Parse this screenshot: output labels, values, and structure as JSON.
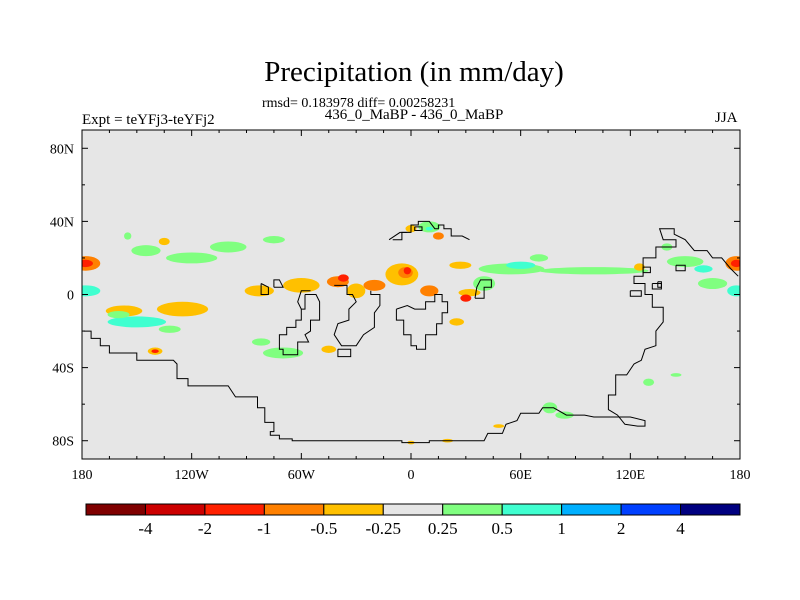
{
  "chart_data": {
    "type": "contour-map",
    "title": "Precipitation (in mm/day)",
    "subtitle": "rmsd= 0.183978 diff= 0.00258231",
    "case_label": "436_0_MaBP - 436_0_MaBP",
    "left_label": "Expt = teYFj3-teYFj2",
    "right_label": "JJA",
    "rmsd": 0.183978,
    "diff": 0.00258231,
    "x_axis": {
      "range": [
        -180,
        180
      ],
      "ticks": [
        -180,
        -120,
        -60,
        0,
        60,
        120,
        180
      ],
      "tick_labels": [
        "180",
        "120W",
        "60W",
        "0",
        "60E",
        "120E",
        "180"
      ]
    },
    "y_axis": {
      "range": [
        -90,
        90
      ],
      "ticks": [
        80,
        40,
        0,
        -40,
        -80
      ],
      "tick_labels": [
        "80N",
        "40N",
        "0",
        "40S",
        "80S"
      ]
    },
    "background_color": "#e6e6e6",
    "colorbar": {
      "levels": [
        "-4",
        "-2",
        "-1",
        "-0.5",
        "-0.25",
        "0.25",
        "0.5",
        "1",
        "2",
        "4"
      ],
      "colors": [
        "#7f0000",
        "#cc0000",
        "#ff2000",
        "#ff8000",
        "#ffc000",
        "#e6e6e6",
        "#80ff80",
        "#40ffd0",
        "#00b0ff",
        "#0040ff",
        "#000080"
      ]
    },
    "anomaly_regions": [
      {
        "lon": -178,
        "lat": 17,
        "rlon": 8,
        "rlat": 4,
        "color": "#ff8000"
      },
      {
        "lon": -178,
        "lat": 17,
        "rlon": 4,
        "rlat": 2,
        "color": "#ff2000"
      },
      {
        "lon": 178,
        "lat": 17,
        "rlon": 6,
        "rlat": 4,
        "color": "#ff8000"
      },
      {
        "lon": 178,
        "lat": 17,
        "rlon": 3,
        "rlat": 2,
        "color": "#ff2000"
      },
      {
        "lon": -178,
        "lat": 2,
        "rlon": 8,
        "rlat": 3,
        "color": "#40ffd0"
      },
      {
        "lon": 178,
        "lat": 2,
        "rlon": 5,
        "rlat": 3,
        "color": "#40ffd0"
      },
      {
        "lon": -145,
        "lat": 24,
        "rlon": 8,
        "rlat": 3,
        "color": "#80ff80"
      },
      {
        "lon": -120,
        "lat": 20,
        "rlon": 14,
        "rlat": 3,
        "color": "#80ff80"
      },
      {
        "lon": -100,
        "lat": 26,
        "rlon": 10,
        "rlat": 3,
        "color": "#80ff80"
      },
      {
        "lon": -75,
        "lat": 30,
        "rlon": 6,
        "rlat": 2,
        "color": "#80ff80"
      },
      {
        "lon": -155,
        "lat": 32,
        "rlon": 2,
        "rlat": 2,
        "color": "#80ff80"
      },
      {
        "lon": -135,
        "lat": 29,
        "rlon": 3,
        "rlat": 2,
        "color": "#ffc000"
      },
      {
        "lon": -157,
        "lat": -9,
        "rlon": 10,
        "rlat": 3,
        "color": "#ffc000"
      },
      {
        "lon": -125,
        "lat": -8,
        "rlon": 14,
        "rlat": 4,
        "color": "#ffc000"
      },
      {
        "lon": -150,
        "lat": -15,
        "rlon": 16,
        "rlat": 3,
        "color": "#40ffd0"
      },
      {
        "lon": -160,
        "lat": -11,
        "rlon": 6,
        "rlat": 2,
        "color": "#80ff80"
      },
      {
        "lon": -132,
        "lat": -19,
        "rlon": 6,
        "rlat": 2,
        "color": "#80ff80"
      },
      {
        "lon": -140,
        "lat": -31,
        "rlon": 4,
        "rlat": 2,
        "color": "#ffc000"
      },
      {
        "lon": -140,
        "lat": -31,
        "rlon": 2,
        "rlat": 1,
        "color": "#ff2000"
      },
      {
        "lon": -70,
        "lat": -32,
        "rlon": 11,
        "rlat": 3,
        "color": "#80ff80"
      },
      {
        "lon": -45,
        "lat": -30,
        "rlon": 4,
        "rlat": 2,
        "color": "#ffc000"
      },
      {
        "lon": -82,
        "lat": -26,
        "rlon": 5,
        "rlat": 2,
        "color": "#80ff80"
      },
      {
        "lon": -83,
        "lat": 2,
        "rlon": 8,
        "rlat": 3,
        "color": "#ffc000"
      },
      {
        "lon": -60,
        "lat": 5,
        "rlon": 10,
        "rlat": 4,
        "color": "#ffc000"
      },
      {
        "lon": -40,
        "lat": 7,
        "rlon": 6,
        "rlat": 3,
        "color": "#ff8000"
      },
      {
        "lon": -37,
        "lat": 9,
        "rlon": 3,
        "rlat": 2,
        "color": "#ff2000"
      },
      {
        "lon": -30,
        "lat": 2,
        "rlon": 5,
        "rlat": 4,
        "color": "#ffc000"
      },
      {
        "lon": -20,
        "lat": 5,
        "rlon": 6,
        "rlat": 3,
        "color": "#ff8000"
      },
      {
        "lon": -5,
        "lat": 11,
        "rlon": 9,
        "rlat": 6,
        "color": "#ffc000"
      },
      {
        "lon": -3,
        "lat": 12,
        "rlon": 4,
        "rlat": 3,
        "color": "#ff8000"
      },
      {
        "lon": -2,
        "lat": 13,
        "rlon": 2,
        "rlat": 2,
        "color": "#ff2000"
      },
      {
        "lon": 10,
        "lat": 2,
        "rlon": 5,
        "rlat": 3,
        "color": "#ff8000"
      },
      {
        "lon": 27,
        "lat": 16,
        "rlon": 6,
        "rlat": 2,
        "color": "#ffc000"
      },
      {
        "lon": 32,
        "lat": 1,
        "rlon": 6,
        "rlat": 2,
        "color": "#ffc000"
      },
      {
        "lon": 30,
        "lat": -2,
        "rlon": 3,
        "rlat": 2,
        "color": "#ff2000"
      },
      {
        "lon": 25,
        "lat": -15,
        "rlon": 4,
        "rlat": 2,
        "color": "#ffc000"
      },
      {
        "lon": 10,
        "lat": 37,
        "rlon": 6,
        "rlat": 3,
        "color": "#80ff80"
      },
      {
        "lon": 10,
        "lat": 36,
        "rlon": 2,
        "rlat": 1,
        "color": "#40ffd0"
      },
      {
        "lon": 0,
        "lat": 36,
        "rlon": 3,
        "rlat": 2,
        "color": "#ffc000"
      },
      {
        "lon": 15,
        "lat": 32,
        "rlon": 3,
        "rlat": 2,
        "color": "#ff8000"
      },
      {
        "lon": 40,
        "lat": 6,
        "rlon": 6,
        "rlat": 4,
        "color": "#80ff80"
      },
      {
        "lon": 55,
        "lat": 14,
        "rlon": 18,
        "rlat": 3,
        "color": "#80ff80"
      },
      {
        "lon": 60,
        "lat": 16,
        "rlon": 8,
        "rlat": 2,
        "color": "#40ffd0"
      },
      {
        "lon": 70,
        "lat": 20,
        "rlon": 5,
        "rlat": 2,
        "color": "#80ff80"
      },
      {
        "lon": 100,
        "lat": 13,
        "rlon": 30,
        "rlat": 2,
        "color": "#80ff80"
      },
      {
        "lon": 150,
        "lat": 18,
        "rlon": 10,
        "rlat": 3,
        "color": "#80ff80"
      },
      {
        "lon": 160,
        "lat": 14,
        "rlon": 5,
        "rlat": 2,
        "color": "#40ffd0"
      },
      {
        "lon": 165,
        "lat": 6,
        "rlon": 8,
        "rlat": 3,
        "color": "#80ff80"
      },
      {
        "lon": 140,
        "lat": 26,
        "rlon": 3,
        "rlat": 2,
        "color": "#80ff80"
      },
      {
        "lon": 125,
        "lat": 15,
        "rlon": 3,
        "rlat": 2,
        "color": "#ffc000"
      },
      {
        "lon": 76,
        "lat": -62,
        "rlon": 4,
        "rlat": 3,
        "color": "#80ff80"
      },
      {
        "lon": 84,
        "lat": -66,
        "rlon": 5,
        "rlat": 2,
        "color": "#80ff80"
      },
      {
        "lon": 130,
        "lat": -48,
        "rlon": 3,
        "rlat": 2,
        "color": "#80ff80"
      },
      {
        "lon": 145,
        "lat": -44,
        "rlon": 3,
        "rlat": 1,
        "color": "#80ff80"
      },
      {
        "lon": 20,
        "lat": -80,
        "rlon": 3,
        "rlat": 1,
        "color": "#ffc000"
      },
      {
        "lon": 48,
        "lat": -72,
        "rlon": 3,
        "rlat": 1,
        "color": "#ffc000"
      },
      {
        "lon": 0,
        "lat": -81,
        "rlon": 2,
        "rlat": 1,
        "color": "#ffc000"
      }
    ],
    "coastlines": [
      [
        [
          -179,
          -20
        ],
        [
          -175,
          -20
        ],
        [
          -175,
          -24
        ],
        [
          -170,
          -24
        ],
        [
          -170,
          -28
        ],
        [
          -165,
          -28
        ],
        [
          -165,
          -32
        ],
        [
          -150,
          -32
        ],
        [
          -150,
          -36
        ],
        [
          -130,
          -36
        ],
        [
          -128,
          -38
        ],
        [
          -128,
          -46
        ],
        [
          -122,
          -46
        ],
        [
          -122,
          -50
        ],
        [
          -100,
          -50
        ],
        [
          -96,
          -56
        ],
        [
          -84,
          -56
        ],
        [
          -84,
          -62
        ],
        [
          -80,
          -62
        ],
        [
          -80,
          -70
        ],
        [
          -75,
          -70
        ],
        [
          -75,
          -75
        ],
        [
          -77,
          -75
        ],
        [
          -77,
          -77
        ],
        [
          -72,
          -77
        ],
        [
          -72,
          -79
        ],
        [
          -65,
          -79
        ],
        [
          -65,
          -80
        ],
        [
          -5,
          -80
        ],
        [
          -5,
          -81
        ],
        [
          10,
          -81
        ],
        [
          10,
          -80
        ],
        [
          40,
          -80
        ],
        [
          42,
          -76
        ],
        [
          50,
          -76
        ],
        [
          52,
          -71
        ],
        [
          58,
          -69
        ],
        [
          60,
          -65
        ],
        [
          70,
          -65
        ],
        [
          72,
          -62
        ],
        [
          78,
          -62
        ],
        [
          85,
          -66
        ],
        [
          95,
          -66
        ],
        [
          100,
          -67
        ],
        [
          120,
          -67
        ],
        [
          128,
          -69
        ],
        [
          128,
          -72
        ],
        [
          124,
          -72
        ],
        [
          117,
          -71
        ],
        [
          113,
          -66
        ],
        [
          108,
          -63
        ],
        [
          108,
          -55
        ],
        [
          112,
          -55
        ],
        [
          112,
          -44
        ],
        [
          118,
          -44
        ],
        [
          122,
          -38
        ],
        [
          126,
          -36
        ],
        [
          128,
          -30
        ],
        [
          134,
          -28
        ],
        [
          134,
          -20
        ],
        [
          138,
          -15
        ],
        [
          138,
          -7
        ],
        [
          132,
          -7
        ],
        [
          132,
          0
        ],
        [
          128,
          0
        ],
        [
          128,
          6
        ],
        [
          122,
          6
        ],
        [
          122,
          10
        ],
        [
          127,
          10
        ],
        [
          127,
          20
        ],
        [
          134,
          20
        ],
        [
          134,
          26
        ],
        [
          145,
          26
        ],
        [
          145,
          30
        ],
        [
          138,
          30
        ],
        [
          136,
          36
        ],
        [
          144,
          36
        ],
        [
          144,
          33
        ],
        [
          150,
          30
        ],
        [
          155,
          24
        ],
        [
          162,
          24
        ],
        [
          165,
          20
        ],
        [
          170,
          20
        ],
        [
          175,
          14
        ],
        [
          179,
          10
        ]
      ],
      [
        [
          -58,
          0
        ],
        [
          -52,
          0
        ],
        [
          -50,
          -4
        ],
        [
          -50,
          -14
        ],
        [
          -55,
          -14
        ],
        [
          -55,
          -20
        ],
        [
          -58,
          -22
        ],
        [
          -56,
          -26
        ],
        [
          -62,
          -26
        ],
        [
          -62,
          -33
        ],
        [
          -70,
          -33
        ],
        [
          -70,
          -30
        ],
        [
          -72,
          -30
        ],
        [
          -72,
          -22
        ],
        [
          -68,
          -22
        ],
        [
          -68,
          -18
        ],
        [
          -63,
          -18
        ],
        [
          -63,
          -14
        ],
        [
          -60,
          -14
        ],
        [
          -60,
          -8
        ],
        [
          -58,
          -8
        ],
        [
          -58,
          0
        ]
      ],
      [
        [
          -60,
          -8
        ],
        [
          -62,
          -4
        ],
        [
          -60,
          2
        ],
        [
          -55,
          2
        ]
      ],
      [
        [
          -42,
          5
        ],
        [
          -35,
          5
        ],
        [
          -35,
          0
        ],
        [
          -32,
          0
        ],
        [
          -30,
          -4
        ],
        [
          -34,
          -8
        ],
        [
          -34,
          -14
        ],
        [
          -40,
          -16
        ],
        [
          -42,
          -22
        ],
        [
          -38,
          -28
        ],
        [
          -30,
          -28
        ],
        [
          -26,
          -22
        ],
        [
          -20,
          -18
        ],
        [
          -20,
          -10
        ],
        [
          -17,
          -6
        ],
        [
          -17,
          0
        ],
        [
          -22,
          0
        ],
        [
          -22,
          2
        ]
      ],
      [
        [
          -40,
          -30
        ],
        [
          -33,
          -30
        ],
        [
          -33,
          -34
        ],
        [
          -40,
          -34
        ],
        [
          -40,
          -30
        ]
      ],
      [
        [
          -8,
          -8
        ],
        [
          -8,
          -14
        ],
        [
          -4,
          -14
        ],
        [
          -4,
          -22
        ],
        [
          0,
          -22
        ],
        [
          0,
          -28
        ],
        [
          3,
          -28
        ],
        [
          3,
          -30
        ],
        [
          8,
          -30
        ],
        [
          8,
          -22
        ],
        [
          14,
          -22
        ],
        [
          14,
          -16
        ],
        [
          17,
          -16
        ],
        [
          17,
          -10
        ],
        [
          20,
          -10
        ],
        [
          20,
          -4
        ],
        [
          17,
          -4
        ],
        [
          17,
          0
        ],
        [
          13,
          0
        ],
        [
          13,
          -4
        ],
        [
          8,
          -4
        ],
        [
          8,
          -8
        ],
        [
          2,
          -8
        ],
        [
          -2,
          -6
        ],
        [
          -8,
          -8
        ]
      ],
      [
        [
          -10,
          30
        ],
        [
          -5,
          30
        ],
        [
          -5,
          34
        ],
        [
          0,
          34
        ],
        [
          0,
          38
        ],
        [
          4,
          38
        ],
        [
          4,
          40
        ],
        [
          10,
          40
        ],
        [
          13,
          36
        ],
        [
          15,
          36
        ],
        [
          15,
          38
        ],
        [
          18,
          38
        ],
        [
          18,
          36
        ],
        [
          22,
          36
        ],
        [
          22,
          32
        ],
        [
          28,
          32
        ],
        [
          32,
          30
        ]
      ],
      [
        [
          -12,
          30
        ],
        [
          -6,
          34
        ],
        [
          -2,
          34
        ]
      ],
      [
        [
          2,
          37
        ],
        [
          6,
          37
        ],
        [
          6,
          35
        ],
        [
          2,
          35
        ],
        [
          2,
          37
        ]
      ],
      [
        [
          35,
          -2
        ],
        [
          40,
          -2
        ],
        [
          40,
          4
        ],
        [
          44,
          4
        ],
        [
          44,
          8
        ],
        [
          38,
          8
        ],
        [
          36,
          4
        ],
        [
          35,
          -2
        ]
      ],
      [
        [
          -82,
          6
        ],
        [
          -82,
          0
        ],
        [
          -78,
          0
        ],
        [
          -78,
          4
        ],
        [
          -82,
          6
        ]
      ],
      [
        [
          -75,
          4
        ],
        [
          -75,
          8
        ],
        [
          -72,
          8
        ],
        [
          -70,
          4
        ],
        [
          -75,
          4
        ]
      ],
      [
        [
          127,
          15
        ],
        [
          131,
          15
        ],
        [
          131,
          12
        ],
        [
          127,
          12
        ],
        [
          127,
          15
        ]
      ],
      [
        [
          120,
          2
        ],
        [
          126,
          2
        ],
        [
          126,
          -1
        ],
        [
          120,
          -1
        ],
        [
          120,
          2
        ]
      ],
      [
        [
          132,
          6
        ],
        [
          137,
          6
        ],
        [
          137,
          3
        ],
        [
          132,
          3
        ],
        [
          132,
          6
        ]
      ],
      [
        [
          145,
          16
        ],
        [
          150,
          16
        ],
        [
          150,
          13
        ],
        [
          145,
          13
        ],
        [
          145,
          16
        ]
      ],
      [
        [
          135,
          7
        ],
        [
          137,
          7
        ],
        [
          137,
          4
        ],
        [
          135,
          4
        ],
        [
          135,
          7
        ]
      ]
    ]
  }
}
